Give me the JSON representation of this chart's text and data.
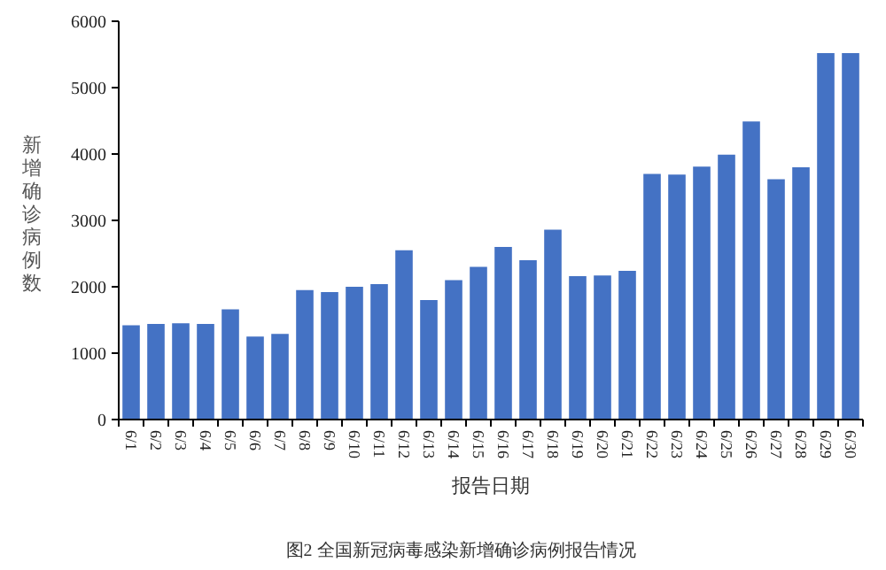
{
  "chart_data": {
    "type": "bar",
    "xlabel": "报告日期",
    "ylabel": "新增确诊病例数",
    "categories": [
      "6/1",
      "6/2",
      "6/3",
      "6/4",
      "6/5",
      "6/6",
      "6/7",
      "6/8",
      "6/9",
      "6/10",
      "6/11",
      "6/12",
      "6/13",
      "6/14",
      "6/15",
      "6/16",
      "6/17",
      "6/18",
      "6/19",
      "6/20",
      "6/21",
      "6/22",
      "6/23",
      "6/24",
      "6/25",
      "6/26",
      "6/27",
      "6/28",
      "6/29",
      "6/30"
    ],
    "values": [
      1420,
      1440,
      1450,
      1440,
      1660,
      1250,
      1290,
      1950,
      1920,
      2000,
      2040,
      2550,
      1800,
      2100,
      2300,
      2600,
      2400,
      2860,
      2160,
      2170,
      2240,
      3700,
      3690,
      3810,
      3990,
      4490,
      3620,
      3800,
      5520,
      5520
    ],
    "color": "#4472c4",
    "ylim": [
      0,
      6000
    ],
    "yticks": [
      0,
      1000,
      2000,
      3000,
      4000,
      5000,
      6000
    ],
    "grid": false,
    "annotations": [
      "图2 全国新冠病毒感染新增确诊病例报告情况"
    ]
  }
}
